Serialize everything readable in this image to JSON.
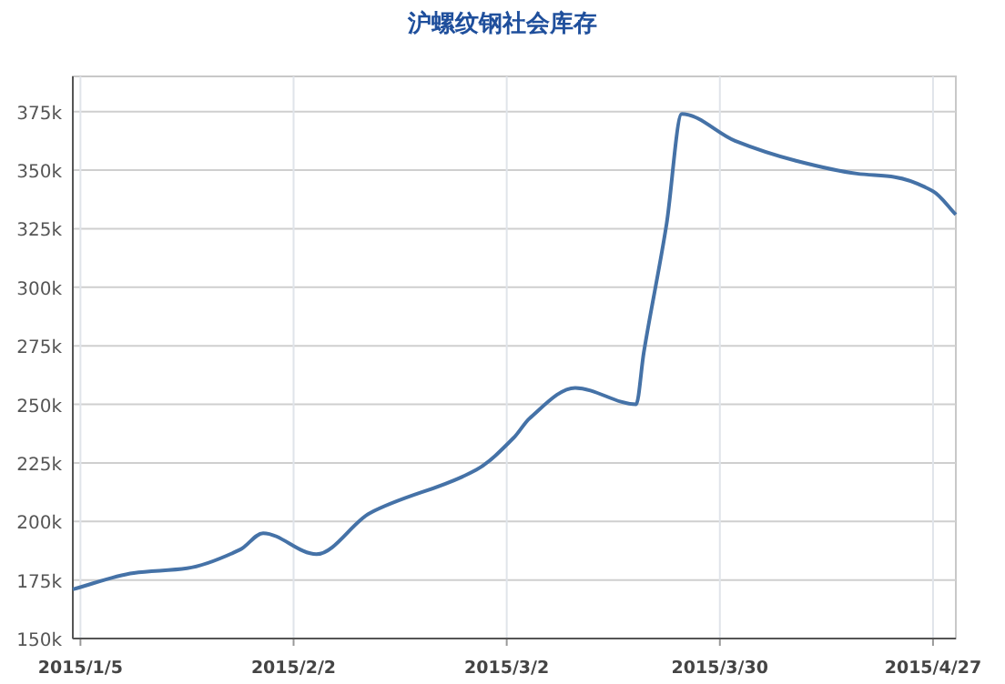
{
  "chart_data": {
    "type": "line",
    "title": "沪螺纹钢社会库存",
    "x": [
      "2015-01-04",
      "2015-01-12",
      "2015-01-19",
      "2015-01-26",
      "2015-01-29",
      "2015-02-05",
      "2015-02-12",
      "2015-02-26",
      "2015-03-03",
      "2015-03-05",
      "2015-03-11",
      "2015-03-19",
      "2015-03-20",
      "2015-03-23",
      "2015-03-25",
      "2015-04-01",
      "2015-04-09",
      "2015-04-17",
      "2015-04-22",
      "2015-04-27",
      "2015-04-30"
    ],
    "series": [
      {
        "color": "#4572a7",
        "values": [
          171000,
          178000,
          180000,
          188000,
          195000,
          186000,
          203500,
          222000,
          236000,
          244000,
          257000,
          250000,
          272000,
          327000,
          374000,
          362500,
          354000,
          348500,
          347000,
          341000,
          331000
        ]
      }
    ],
    "xlim": [
      "2015-01-04",
      "2015-04-30"
    ],
    "xticks": [
      {
        "value": "2015-01-05",
        "label": "2015/1/5"
      },
      {
        "value": "2015-02-02",
        "label": "2015/2/2"
      },
      {
        "value": "2015-03-02",
        "label": "2015/3/2"
      },
      {
        "value": "2015-03-30",
        "label": "2015/3/30"
      },
      {
        "value": "2015-04-27",
        "label": "2015/4/27"
      }
    ],
    "ylim": [
      150000,
      390000
    ],
    "yticks": [
      {
        "value": 150000,
        "label": "150k"
      },
      {
        "value": 175000,
        "label": "175k"
      },
      {
        "value": 200000,
        "label": "200k"
      },
      {
        "value": 225000,
        "label": "225k"
      },
      {
        "value": 250000,
        "label": "250k"
      },
      {
        "value": 275000,
        "label": "275k"
      },
      {
        "value": 300000,
        "label": "300k"
      },
      {
        "value": 325000,
        "label": "325k"
      },
      {
        "value": 350000,
        "label": "350k"
      },
      {
        "value": 375000,
        "label": "375k"
      }
    ],
    "grid": true,
    "marker": "none",
    "line_style": "solid"
  }
}
